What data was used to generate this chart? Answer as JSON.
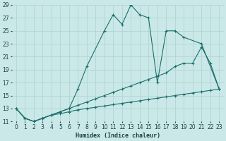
{
  "xlabel": "Humidex (Indice chaleur)",
  "xlim": [
    -0.5,
    23.5
  ],
  "ylim": [
    11,
    29
  ],
  "yticks": [
    11,
    13,
    15,
    17,
    19,
    21,
    23,
    25,
    27,
    29
  ],
  "xticks": [
    0,
    1,
    2,
    3,
    4,
    5,
    6,
    7,
    8,
    9,
    10,
    11,
    12,
    13,
    14,
    15,
    16,
    17,
    18,
    19,
    20,
    21,
    22,
    23
  ],
  "background_color": "#cae8e8",
  "grid_color": "#b0d4d4",
  "line_color": "#1a6e6a",
  "line1_x": [
    0,
    1,
    2,
    3,
    4,
    5,
    6,
    7,
    8,
    10,
    11,
    12,
    13,
    14,
    15,
    16,
    17,
    18,
    19,
    21,
    23
  ],
  "line1_y": [
    13,
    11.5,
    11,
    11.5,
    12,
    12.5,
    13,
    16,
    19.5,
    25,
    27.5,
    26,
    29,
    27.5,
    27,
    17,
    25,
    25,
    24,
    23,
    16
  ],
  "line2_x": [
    0,
    1,
    2,
    3,
    4,
    5,
    6,
    7,
    8,
    9,
    10,
    11,
    12,
    13,
    14,
    15,
    16,
    17,
    18,
    19,
    20,
    21,
    22,
    23
  ],
  "line2_y": [
    13,
    11.5,
    11,
    11.5,
    12,
    12.5,
    13,
    13.5,
    14,
    14.5,
    15,
    15.5,
    16,
    16.5,
    17,
    17.5,
    18,
    18.5,
    19.5,
    20,
    20,
    22.5,
    20,
    16
  ],
  "line3_x": [
    0,
    1,
    2,
    3,
    4,
    5,
    6,
    7,
    8,
    9,
    10,
    11,
    12,
    13,
    14,
    15,
    16,
    17,
    18,
    19,
    20,
    21,
    22,
    23
  ],
  "line3_y": [
    13,
    11.5,
    11,
    11.5,
    12,
    12.2,
    12.5,
    12.8,
    13,
    13.2,
    13.4,
    13.6,
    13.8,
    14,
    14.2,
    14.4,
    14.6,
    14.8,
    15,
    15.2,
    15.4,
    15.6,
    15.8,
    16
  ]
}
